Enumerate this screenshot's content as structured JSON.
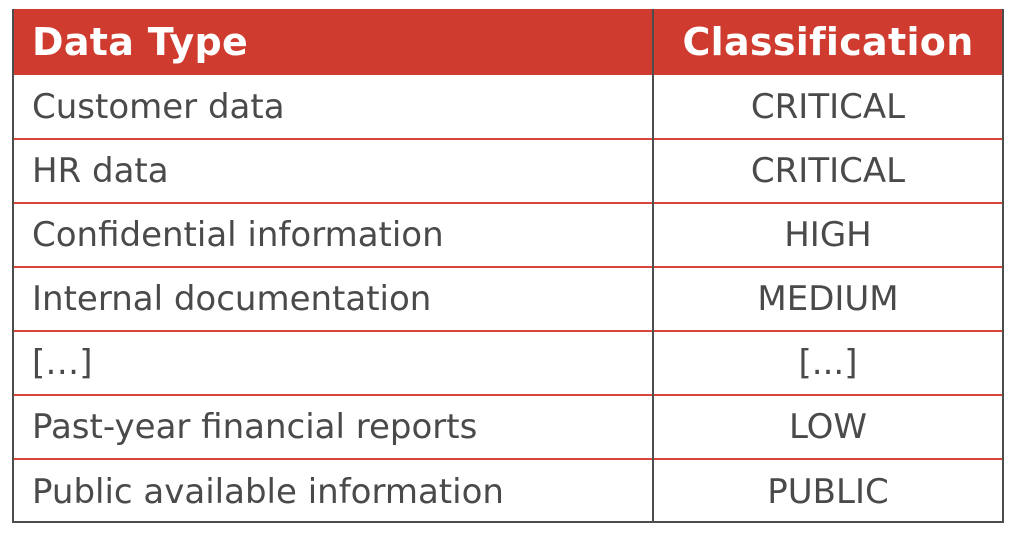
{
  "table": {
    "headers": [
      "Data Type",
      "Classification"
    ],
    "rows": [
      {
        "type": "Customer data",
        "classification": "CRITICAL"
      },
      {
        "type": "HR data",
        "classification": "CRITICAL"
      },
      {
        "type": "Confidential information",
        "classification": "HIGH"
      },
      {
        "type": "Internal documentation",
        "classification": "MEDIUM"
      },
      {
        "type": "[…]",
        "classification": "[...]"
      },
      {
        "type": "Past-year financial reports",
        "classification": "LOW"
      },
      {
        "type": "Public available information",
        "classification": "PUBLIC"
      }
    ]
  },
  "colors": {
    "header_background": "#cf3b2e",
    "header_text": "#ffffff",
    "row_divider": "#d9463b",
    "body_text": "#4a4a4a"
  }
}
